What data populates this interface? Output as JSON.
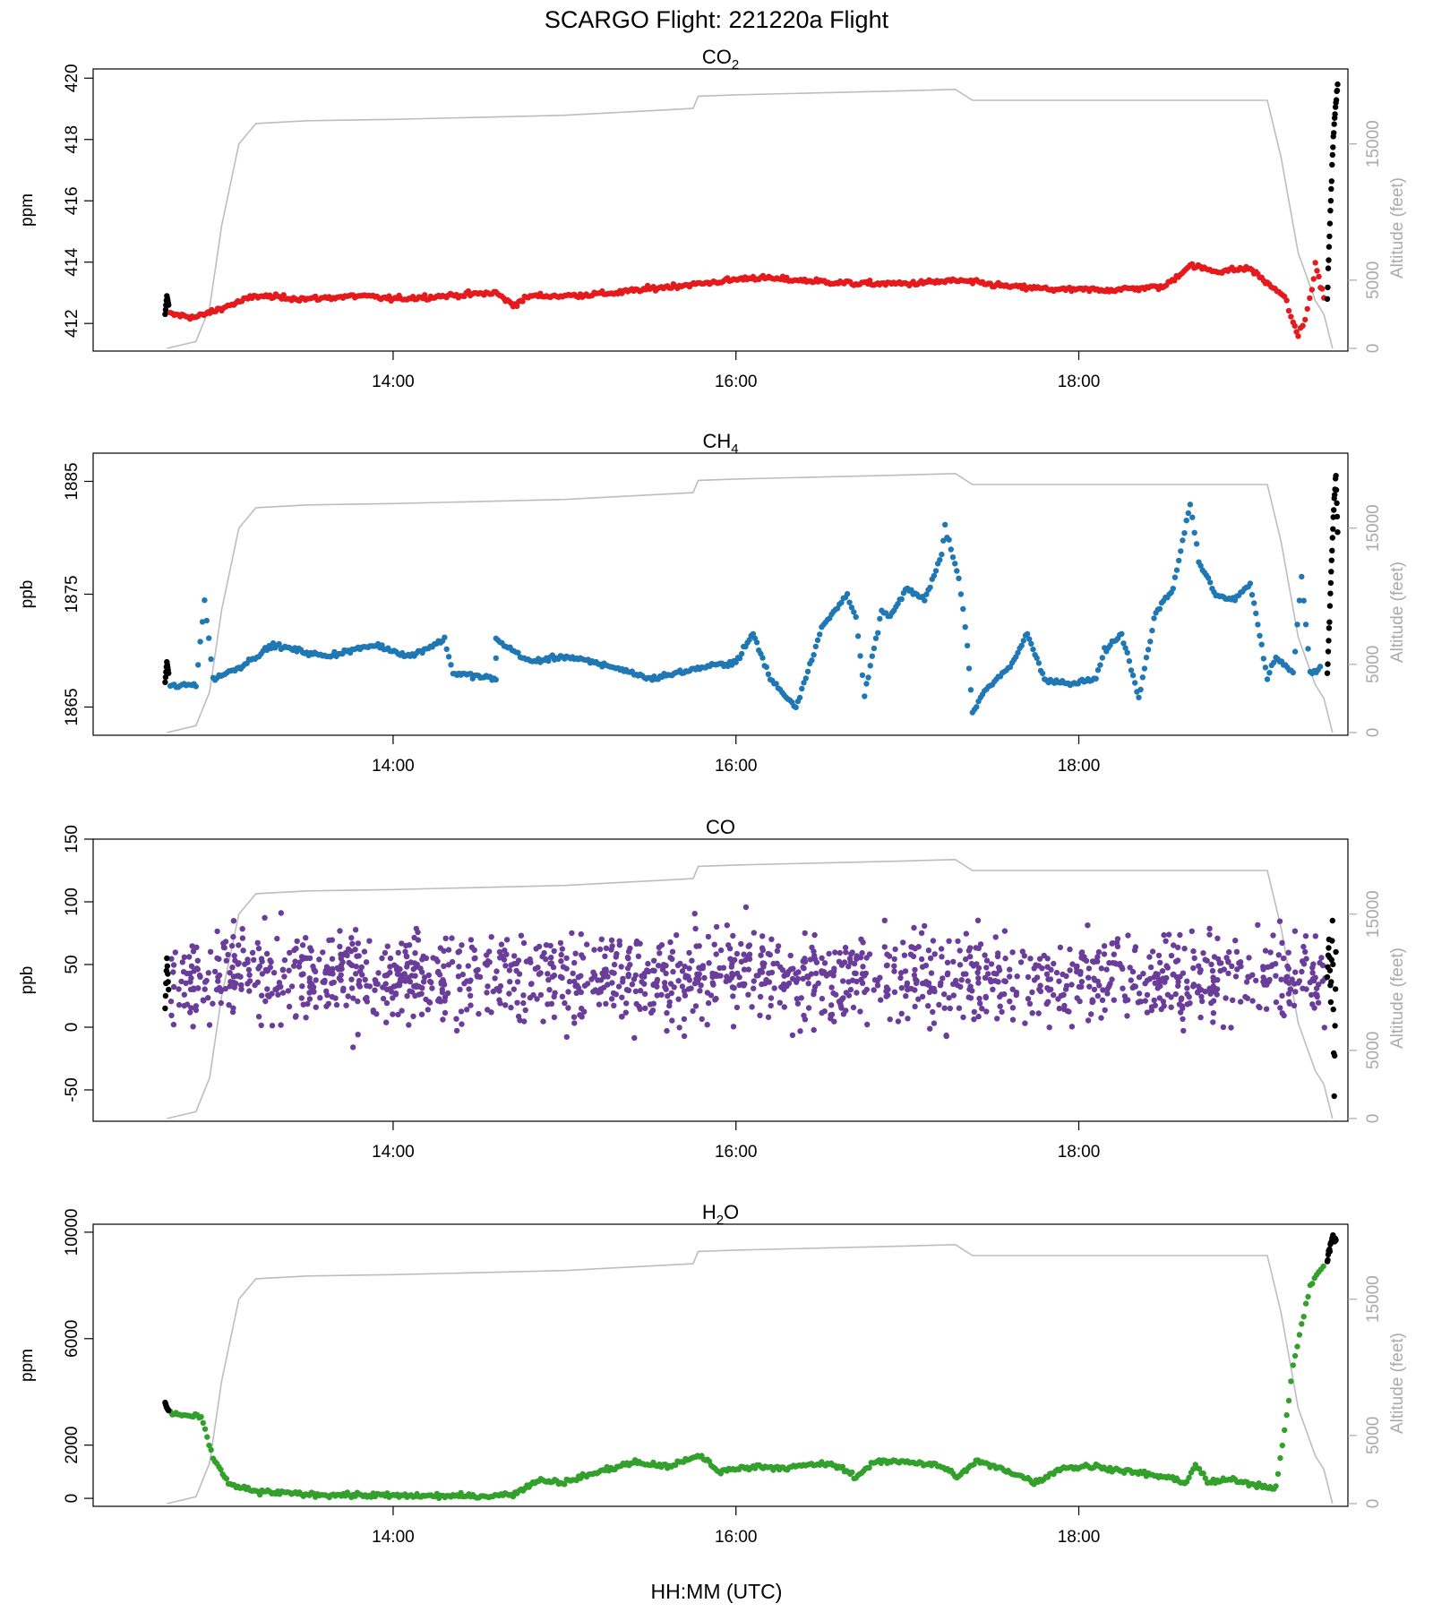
{
  "figure": {
    "title": "SCARGO Flight: 221220a  Flight",
    "xlabel": "HH:MM (UTC)",
    "y2label": "Altitude (feet)",
    "x_ticks": [
      "14:00",
      "16:00",
      "18:00"
    ],
    "colors": {
      "altitude": "#bdbdbd",
      "ground": "#000000",
      "axis": "#000000",
      "axis2": "#aaaaaa"
    }
  },
  "chart_data": [
    {
      "type": "scatter",
      "title": "CO",
      "title_sub": "2",
      "title_suffix": "",
      "ylabel": "ppm",
      "ylim": [
        411.1,
        420.3
      ],
      "yticks": [
        "412",
        "414",
        "416",
        "418",
        "420"
      ],
      "y2lim": [
        -200,
        20500
      ],
      "y2ticks": [
        "0",
        "5000",
        "15000"
      ],
      "xlim_hours": [
        12.25,
        19.57
      ],
      "x_tick_hours": [
        14,
        16,
        18
      ],
      "color": "#e41a1c",
      "series": {
        "ground_start": [
          [
            12.67,
            412.3
          ],
          [
            12.68,
            412.9
          ],
          [
            12.69,
            412.6
          ]
        ],
        "flight": [
          [
            12.7,
            412.3
          ],
          [
            12.85,
            412.2
          ],
          [
            13.0,
            412.5
          ],
          [
            13.2,
            412.9
          ],
          [
            13.5,
            412.8
          ],
          [
            13.8,
            412.9
          ],
          [
            14.0,
            412.8
          ],
          [
            14.3,
            412.9
          ],
          [
            14.6,
            413.0
          ],
          [
            14.7,
            412.6
          ],
          [
            14.8,
            412.9
          ],
          [
            15.0,
            412.9
          ],
          [
            15.3,
            413.0
          ],
          [
            15.6,
            413.2
          ],
          [
            15.8,
            413.3
          ],
          [
            16.1,
            413.5
          ],
          [
            16.4,
            413.4
          ],
          [
            16.7,
            413.3
          ],
          [
            17.0,
            413.3
          ],
          [
            17.3,
            413.4
          ],
          [
            17.6,
            413.2
          ],
          [
            17.9,
            413.1
          ],
          [
            18.2,
            413.1
          ],
          [
            18.5,
            413.2
          ],
          [
            18.65,
            413.9
          ],
          [
            18.8,
            413.7
          ],
          [
            19.0,
            413.8
          ],
          [
            19.1,
            413.3
          ],
          [
            19.2,
            412.9
          ],
          [
            19.25,
            412.0
          ],
          [
            19.28,
            411.6
          ],
          [
            19.32,
            412.2
          ],
          [
            19.36,
            413.0
          ],
          [
            19.38,
            414.0
          ],
          [
            19.41,
            413.2
          ],
          [
            19.44,
            412.8
          ]
        ],
        "ground_end": [
          [
            19.45,
            412.8
          ],
          [
            19.46,
            414.5
          ],
          [
            19.47,
            416.0
          ],
          [
            19.48,
            417.5
          ],
          [
            19.49,
            418.5
          ],
          [
            19.5,
            419.2
          ],
          [
            19.51,
            419.8
          ]
        ]
      },
      "altitude": [
        [
          12.68,
          0
        ],
        [
          12.75,
          200
        ],
        [
          12.85,
          500
        ],
        [
          12.93,
          3000
        ],
        [
          13.0,
          9000
        ],
        [
          13.1,
          15000
        ],
        [
          13.2,
          16500
        ],
        [
          13.5,
          16700
        ],
        [
          14.0,
          16800
        ],
        [
          15.0,
          17100
        ],
        [
          15.75,
          17600
        ],
        [
          15.78,
          18500
        ],
        [
          16.0,
          18600
        ],
        [
          17.0,
          18900
        ],
        [
          17.28,
          19000
        ],
        [
          17.38,
          18200
        ],
        [
          18.0,
          18200
        ],
        [
          18.8,
          18200
        ],
        [
          19.1,
          18200
        ],
        [
          19.18,
          14000
        ],
        [
          19.28,
          7000
        ],
        [
          19.38,
          3500
        ],
        [
          19.43,
          2500
        ],
        [
          19.48,
          0
        ]
      ]
    },
    {
      "type": "scatter",
      "title": "CH",
      "title_sub": "4",
      "title_suffix": "",
      "ylabel": "ppb",
      "ylim": [
        1862.5,
        1887.5
      ],
      "yticks": [
        "1865",
        "1875",
        "1885"
      ],
      "y2lim": [
        -200,
        20500
      ],
      "y2ticks": [
        "0",
        "5000",
        "15000"
      ],
      "xlim_hours": [
        12.25,
        19.57
      ],
      "x_tick_hours": [
        14,
        16,
        18
      ],
      "color": "#1f78b4",
      "series": {
        "ground_start": [
          [
            12.67,
            1867.2
          ],
          [
            12.68,
            1869.0
          ],
          [
            12.69,
            1868.0
          ]
        ],
        "flight": [
          [
            12.7,
            1866.8
          ],
          [
            12.85,
            1867.0
          ],
          [
            12.9,
            1874.5
          ],
          [
            12.95,
            1867.5
          ],
          [
            13.1,
            1868.5
          ],
          [
            13.3,
            1870.5
          ],
          [
            13.6,
            1869.5
          ],
          [
            13.9,
            1870.5
          ],
          [
            14.1,
            1869.5
          ],
          [
            14.3,
            1871.0
          ],
          [
            14.35,
            1868.0
          ],
          [
            14.6,
            1867.5
          ],
          [
            14.6,
            1871.0
          ],
          [
            14.8,
            1869.0
          ],
          [
            15.0,
            1869.5
          ],
          [
            15.3,
            1868.5
          ],
          [
            15.5,
            1867.5
          ],
          [
            15.8,
            1868.5
          ],
          [
            16.0,
            1869.0
          ],
          [
            16.1,
            1871.5
          ],
          [
            16.2,
            1867.5
          ],
          [
            16.35,
            1865.0
          ],
          [
            16.5,
            1872.0
          ],
          [
            16.65,
            1875.0
          ],
          [
            16.7,
            1873.0
          ],
          [
            16.75,
            1866.0
          ],
          [
            16.85,
            1873.5
          ],
          [
            16.9,
            1873.0
          ],
          [
            17.0,
            1875.5
          ],
          [
            17.1,
            1874.5
          ],
          [
            17.2,
            1878.5
          ],
          [
            17.22,
            1881.0
          ],
          [
            17.3,
            1876.5
          ],
          [
            17.35,
            1870.5
          ],
          [
            17.38,
            1864.5
          ],
          [
            17.45,
            1866.5
          ],
          [
            17.6,
            1868.5
          ],
          [
            17.7,
            1871.5
          ],
          [
            17.8,
            1867.5
          ],
          [
            17.95,
            1867.0
          ],
          [
            18.1,
            1867.5
          ],
          [
            18.15,
            1870.0
          ],
          [
            18.25,
            1871.5
          ],
          [
            18.35,
            1866.0
          ],
          [
            18.45,
            1873.5
          ],
          [
            18.55,
            1875.5
          ],
          [
            18.65,
            1883.0
          ],
          [
            18.7,
            1878.0
          ],
          [
            18.8,
            1875.0
          ],
          [
            18.9,
            1874.5
          ],
          [
            19.0,
            1876.0
          ],
          [
            19.1,
            1867.5
          ],
          [
            19.15,
            1869.5
          ],
          [
            19.25,
            1868.0
          ],
          [
            19.3,
            1876.5
          ],
          [
            19.35,
            1868.0
          ],
          [
            19.42,
            1868.5
          ]
        ],
        "ground_end": [
          [
            19.45,
            1868.0
          ],
          [
            19.46,
            1872.0
          ],
          [
            19.47,
            1876.0
          ],
          [
            19.48,
            1880.0
          ],
          [
            19.49,
            1883.5
          ],
          [
            19.5,
            1885.5
          ],
          [
            19.51,
            1880.5
          ]
        ]
      },
      "altitude": [
        [
          12.68,
          0
        ],
        [
          12.75,
          200
        ],
        [
          12.85,
          500
        ],
        [
          12.93,
          3000
        ],
        [
          13.0,
          9000
        ],
        [
          13.1,
          15000
        ],
        [
          13.2,
          16500
        ],
        [
          13.5,
          16700
        ],
        [
          14.0,
          16800
        ],
        [
          15.0,
          17100
        ],
        [
          15.75,
          17600
        ],
        [
          15.78,
          18500
        ],
        [
          16.0,
          18600
        ],
        [
          17.0,
          18900
        ],
        [
          17.28,
          19000
        ],
        [
          17.38,
          18200
        ],
        [
          18.0,
          18200
        ],
        [
          18.8,
          18200
        ],
        [
          19.1,
          18200
        ],
        [
          19.18,
          14000
        ],
        [
          19.28,
          7000
        ],
        [
          19.38,
          3500
        ],
        [
          19.43,
          2500
        ],
        [
          19.48,
          0
        ]
      ]
    },
    {
      "type": "scatter",
      "title": "CO",
      "title_sub": "",
      "title_suffix": "",
      "ylabel": "ppb",
      "ylim": [
        -75,
        150
      ],
      "yticks": [
        "-50",
        "0",
        "50",
        "100",
        "150"
      ],
      "y2lim": [
        -200,
        20500
      ],
      "y2ticks": [
        "0",
        "5000",
        "15000"
      ],
      "xlim_hours": [
        12.25,
        19.57
      ],
      "x_tick_hours": [
        14,
        16,
        18
      ],
      "color": "#6a3d9a",
      "noise": {
        "center": 40,
        "spread": 25,
        "count": 1500,
        "outlier_min": -70,
        "outlier_max": 145
      },
      "series": {
        "ground_start": [
          [
            12.67,
            15
          ],
          [
            12.68,
            55
          ],
          [
            12.69,
            30
          ]
        ],
        "flight_range": [
          12.7,
          19.44
        ],
        "ground_end": [
          [
            19.45,
            40
          ],
          [
            19.46,
            70
          ],
          [
            19.47,
            20
          ],
          [
            19.48,
            85
          ],
          [
            19.49,
            -55
          ],
          [
            19.5,
            60
          ]
        ]
      },
      "altitude": [
        [
          12.68,
          0
        ],
        [
          12.75,
          200
        ],
        [
          12.85,
          500
        ],
        [
          12.93,
          3000
        ],
        [
          13.0,
          9000
        ],
        [
          13.1,
          15000
        ],
        [
          13.2,
          16500
        ],
        [
          13.5,
          16700
        ],
        [
          14.0,
          16800
        ],
        [
          15.0,
          17100
        ],
        [
          15.75,
          17600
        ],
        [
          15.78,
          18500
        ],
        [
          16.0,
          18600
        ],
        [
          17.0,
          18900
        ],
        [
          17.28,
          19000
        ],
        [
          17.38,
          18200
        ],
        [
          18.0,
          18200
        ],
        [
          18.8,
          18200
        ],
        [
          19.1,
          18200
        ],
        [
          19.18,
          14000
        ],
        [
          19.28,
          7000
        ],
        [
          19.38,
          3500
        ],
        [
          19.43,
          2500
        ],
        [
          19.48,
          0
        ]
      ]
    },
    {
      "type": "scatter",
      "title": "H",
      "title_sub": "2",
      "title_suffix": "O",
      "ylabel": "ppm",
      "ylim": [
        -300,
        10300
      ],
      "yticks": [
        "0",
        "2000",
        "6000",
        "10000"
      ],
      "y2lim": [
        -200,
        20500
      ],
      "y2ticks": [
        "0",
        "5000",
        "15000"
      ],
      "xlim_hours": [
        12.25,
        19.57
      ],
      "x_tick_hours": [
        14,
        16,
        18
      ],
      "color": "#33a02c",
      "series": {
        "ground_start": [
          [
            12.67,
            3600
          ],
          [
            12.68,
            3400
          ],
          [
            12.69,
            3300
          ]
        ],
        "flight": [
          [
            12.7,
            3200
          ],
          [
            12.8,
            3100
          ],
          [
            12.88,
            3050
          ],
          [
            12.95,
            1500
          ],
          [
            13.05,
            500
          ],
          [
            13.2,
            250
          ],
          [
            13.5,
            150
          ],
          [
            14.0,
            100
          ],
          [
            14.5,
            80
          ],
          [
            14.7,
            150
          ],
          [
            14.85,
            700
          ],
          [
            15.0,
            600
          ],
          [
            15.2,
            1000
          ],
          [
            15.4,
            1350
          ],
          [
            15.6,
            1200
          ],
          [
            15.8,
            1600
          ],
          [
            15.9,
            1000
          ],
          [
            16.1,
            1200
          ],
          [
            16.3,
            1150
          ],
          [
            16.5,
            1300
          ],
          [
            16.6,
            1200
          ],
          [
            16.7,
            800
          ],
          [
            16.8,
            1350
          ],
          [
            17.0,
            1400
          ],
          [
            17.2,
            1200
          ],
          [
            17.3,
            800
          ],
          [
            17.4,
            1400
          ],
          [
            17.6,
            1000
          ],
          [
            17.75,
            600
          ],
          [
            17.9,
            1150
          ],
          [
            18.1,
            1200
          ],
          [
            18.3,
            1000
          ],
          [
            18.5,
            800
          ],
          [
            18.63,
            600
          ],
          [
            18.68,
            1300
          ],
          [
            18.75,
            600
          ],
          [
            18.9,
            700
          ],
          [
            19.05,
            500
          ],
          [
            19.15,
            400
          ],
          [
            19.2,
            2500
          ],
          [
            19.25,
            5000
          ],
          [
            19.3,
            6500
          ],
          [
            19.35,
            8000
          ],
          [
            19.4,
            8500
          ],
          [
            19.44,
            8800
          ]
        ],
        "ground_end": [
          [
            19.45,
            8900
          ],
          [
            19.46,
            9300
          ],
          [
            19.47,
            9600
          ],
          [
            19.48,
            9800
          ],
          [
            19.49,
            9700
          ],
          [
            19.5,
            9700
          ]
        ]
      },
      "altitude": [
        [
          12.68,
          0
        ],
        [
          12.75,
          200
        ],
        [
          12.85,
          500
        ],
        [
          12.93,
          3000
        ],
        [
          13.0,
          9000
        ],
        [
          13.1,
          15000
        ],
        [
          13.2,
          16500
        ],
        [
          13.5,
          16700
        ],
        [
          14.0,
          16800
        ],
        [
          15.0,
          17100
        ],
        [
          15.75,
          17600
        ],
        [
          15.78,
          18500
        ],
        [
          16.0,
          18600
        ],
        [
          17.0,
          18900
        ],
        [
          17.28,
          19000
        ],
        [
          17.38,
          18200
        ],
        [
          18.0,
          18200
        ],
        [
          18.8,
          18200
        ],
        [
          19.1,
          18200
        ],
        [
          19.18,
          14000
        ],
        [
          19.28,
          7000
        ],
        [
          19.38,
          3500
        ],
        [
          19.43,
          2500
        ],
        [
          19.48,
          0
        ]
      ]
    }
  ]
}
